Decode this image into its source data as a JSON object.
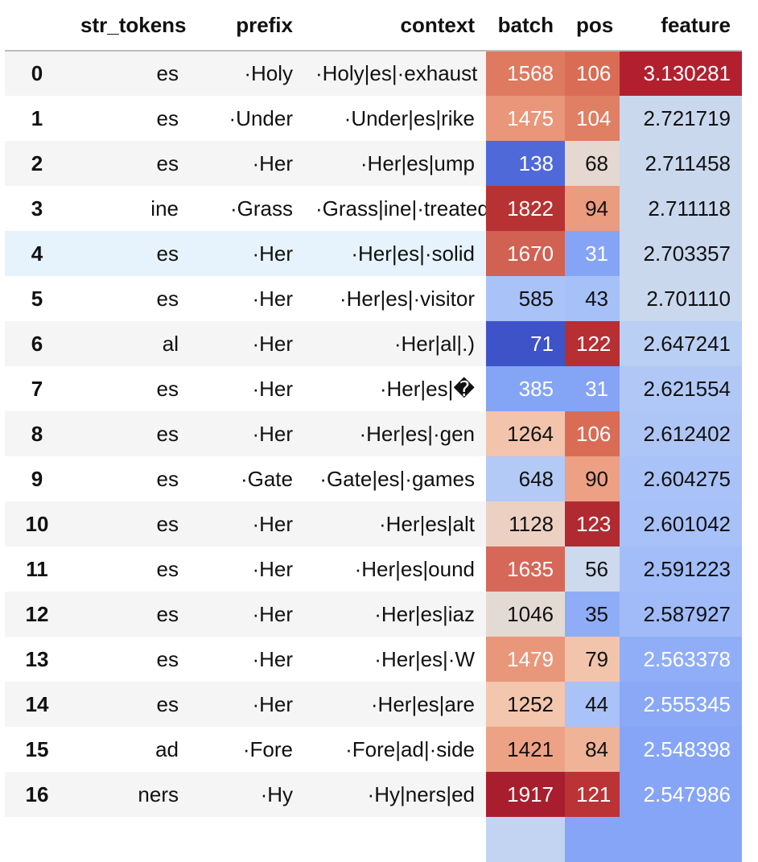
{
  "table": {
    "columns": [
      "",
      "str_tokens",
      "prefix",
      "context",
      "batch",
      "pos",
      "feature"
    ],
    "rows": [
      {
        "index": "0",
        "str_tokens": "es",
        "prefix": "·Holy",
        "context": "·Holy|es|·exhaust",
        "batch": "1568",
        "pos": "106",
        "feature": "3.130281",
        "batch_bg": "#dd7a60",
        "batch_fg": "#ffffff",
        "pos_bg": "#da6c55",
        "pos_fg": "#ffffff",
        "feature_bg": "#b2202f",
        "feature_fg": "#ffffff"
      },
      {
        "index": "1",
        "str_tokens": "es",
        "prefix": "·Under",
        "context": "·Under|es|rike",
        "batch": "1475",
        "pos": "104",
        "feature": "2.721719",
        "batch_bg": "#e9967a",
        "batch_fg": "#ffffff",
        "pos_bg": "#df7f63",
        "pos_fg": "#ffffff",
        "feature_bg": "#cad8ee",
        "feature_fg": "#111111"
      },
      {
        "index": "2",
        "str_tokens": "es",
        "prefix": "·Her",
        "context": "·Her|es|ump",
        "batch": "138",
        "pos": "68",
        "feature": "2.711458",
        "batch_bg": "#4f69d9",
        "batch_fg": "#ffffff",
        "pos_bg": "#e5d8d1",
        "pos_fg": "#111111",
        "feature_bg": "#cad8ee",
        "feature_fg": "#111111"
      },
      {
        "index": "3",
        "str_tokens": "ine",
        "prefix": "·Grass",
        "context": "·Grass|ine|·treated",
        "batch": "1822",
        "pos": "94",
        "feature": "2.711118",
        "batch_bg": "#b73232",
        "batch_fg": "#ffffff",
        "pos_bg": "#eb9b7e",
        "pos_fg": "#111111",
        "feature_bg": "#cad8ee",
        "feature_fg": "#111111"
      },
      {
        "index": "4",
        "str_tokens": "es",
        "prefix": "·Her",
        "context": "·Her|es|·solid",
        "batch": "1670",
        "pos": "31",
        "feature": "2.703357",
        "batch_bg": "#d16152",
        "batch_fg": "#ffffff",
        "pos_bg": "#85a4f6",
        "pos_fg": "#ffffff",
        "feature_bg": "#cad8ee",
        "feature_fg": "#111111"
      },
      {
        "index": "5",
        "str_tokens": "es",
        "prefix": "·Her",
        "context": "·Her|es|·visitor",
        "batch": "585",
        "pos": "43",
        "feature": "2.701110",
        "batch_bg": "#a9c2f8",
        "batch_fg": "#111111",
        "pos_bg": "#a6c1f8",
        "pos_fg": "#111111",
        "feature_bg": "#cad8ee",
        "feature_fg": "#111111"
      },
      {
        "index": "6",
        "str_tokens": "al",
        "prefix": "·Her",
        "context": "·Her|al|.)",
        "batch": "71",
        "pos": "122",
        "feature": "2.647241",
        "batch_bg": "#3e53c8",
        "batch_fg": "#ffffff",
        "pos_bg": "#b72e33",
        "pos_fg": "#ffffff",
        "feature_bg": "#bacff4",
        "feature_fg": "#111111"
      },
      {
        "index": "7",
        "str_tokens": "es",
        "prefix": "·Her",
        "context": "·Her|es|�",
        "batch": "385",
        "pos": "31",
        "feature": "2.621554",
        "batch_bg": "#84a4f5",
        "batch_fg": "#ffffff",
        "pos_bg": "#85a4f6",
        "pos_fg": "#ffffff",
        "feature_bg": "#b1c8f6",
        "feature_fg": "#111111"
      },
      {
        "index": "8",
        "str_tokens": "es",
        "prefix": "·Her",
        "context": "·Her|es|·gen",
        "batch": "1264",
        "pos": "106",
        "feature": "2.612402",
        "batch_bg": "#f3c4ac",
        "batch_fg": "#111111",
        "pos_bg": "#da6c55",
        "pos_fg": "#ffffff",
        "feature_bg": "#aec6f6",
        "feature_fg": "#111111"
      },
      {
        "index": "9",
        "str_tokens": "es",
        "prefix": "·Gate",
        "context": "·Gate|es|·games",
        "batch": "648",
        "pos": "90",
        "feature": "2.604275",
        "batch_bg": "#b3c9f6",
        "batch_fg": "#111111",
        "pos_bg": "#eda083",
        "pos_fg": "#111111",
        "feature_bg": "#a9c2f8",
        "feature_fg": "#111111"
      },
      {
        "index": "10",
        "str_tokens": "es",
        "prefix": "·Her",
        "context": "·Her|es|alt",
        "batch": "1128",
        "pos": "123",
        "feature": "2.601042",
        "batch_bg": "#ecd1c3",
        "batch_fg": "#111111",
        "pos_bg": "#b22a31",
        "pos_fg": "#ffffff",
        "feature_bg": "#a8c1f8",
        "feature_fg": "#111111"
      },
      {
        "index": "11",
        "str_tokens": "es",
        "prefix": "·Her",
        "context": "·Her|es|ound",
        "batch": "1635",
        "pos": "56",
        "feature": "2.591223",
        "batch_bg": "#d6685a",
        "batch_fg": "#ffffff",
        "pos_bg": "#cdd9ec",
        "pos_fg": "#111111",
        "feature_bg": "#a2bdf8",
        "feature_fg": "#111111"
      },
      {
        "index": "12",
        "str_tokens": "es",
        "prefix": "·Her",
        "context": "·Her|es|iaz",
        "batch": "1046",
        "pos": "35",
        "feature": "2.587927",
        "batch_bg": "#e3dad4",
        "batch_fg": "#111111",
        "pos_bg": "#8fadf7",
        "pos_fg": "#111111",
        "feature_bg": "#a0bbf8",
        "feature_fg": "#111111"
      },
      {
        "index": "13",
        "str_tokens": "es",
        "prefix": "·Her",
        "context": "·Her|es|·W",
        "batch": "1479",
        "pos": "79",
        "feature": "2.563378",
        "batch_bg": "#e9977b",
        "batch_fg": "#ffffff",
        "pos_bg": "#f2c4ab",
        "pos_fg": "#111111",
        "feature_bg": "#90aef7",
        "feature_fg": "#ffffff"
      },
      {
        "index": "14",
        "str_tokens": "es",
        "prefix": "·Her",
        "context": "·Her|es|are",
        "batch": "1252",
        "pos": "44",
        "feature": "2.555345",
        "batch_bg": "#f3c6ae",
        "batch_fg": "#111111",
        "pos_bg": "#a9c2f8",
        "pos_fg": "#111111",
        "feature_bg": "#8aa8f6",
        "feature_fg": "#ffffff"
      },
      {
        "index": "15",
        "str_tokens": "ad",
        "prefix": "·Fore",
        "context": "·Fore|ad|·side",
        "batch": "1421",
        "pos": "84",
        "feature": "2.548398",
        "batch_bg": "#eda285",
        "batch_fg": "#111111",
        "pos_bg": "#efb398",
        "pos_fg": "#111111",
        "feature_bg": "#86a5f6",
        "feature_fg": "#ffffff"
      },
      {
        "index": "16",
        "str_tokens": "ners",
        "prefix": "·Hy",
        "context": "·Hy|ners|ed",
        "batch": "1917",
        "pos": "121",
        "feature": "2.547986",
        "batch_bg": "#a81e2e",
        "batch_fg": "#ffffff",
        "pos_bg": "#bb3335",
        "pos_fg": "#ffffff",
        "feature_bg": "#86a5f6",
        "feature_fg": "#ffffff"
      }
    ],
    "partial_next_row": {
      "batch_bg": "#c3d4f2",
      "pos_bg": "#86a5f6",
      "feature_bg": "#86a5f6"
    },
    "hover_row_index": 4
  }
}
